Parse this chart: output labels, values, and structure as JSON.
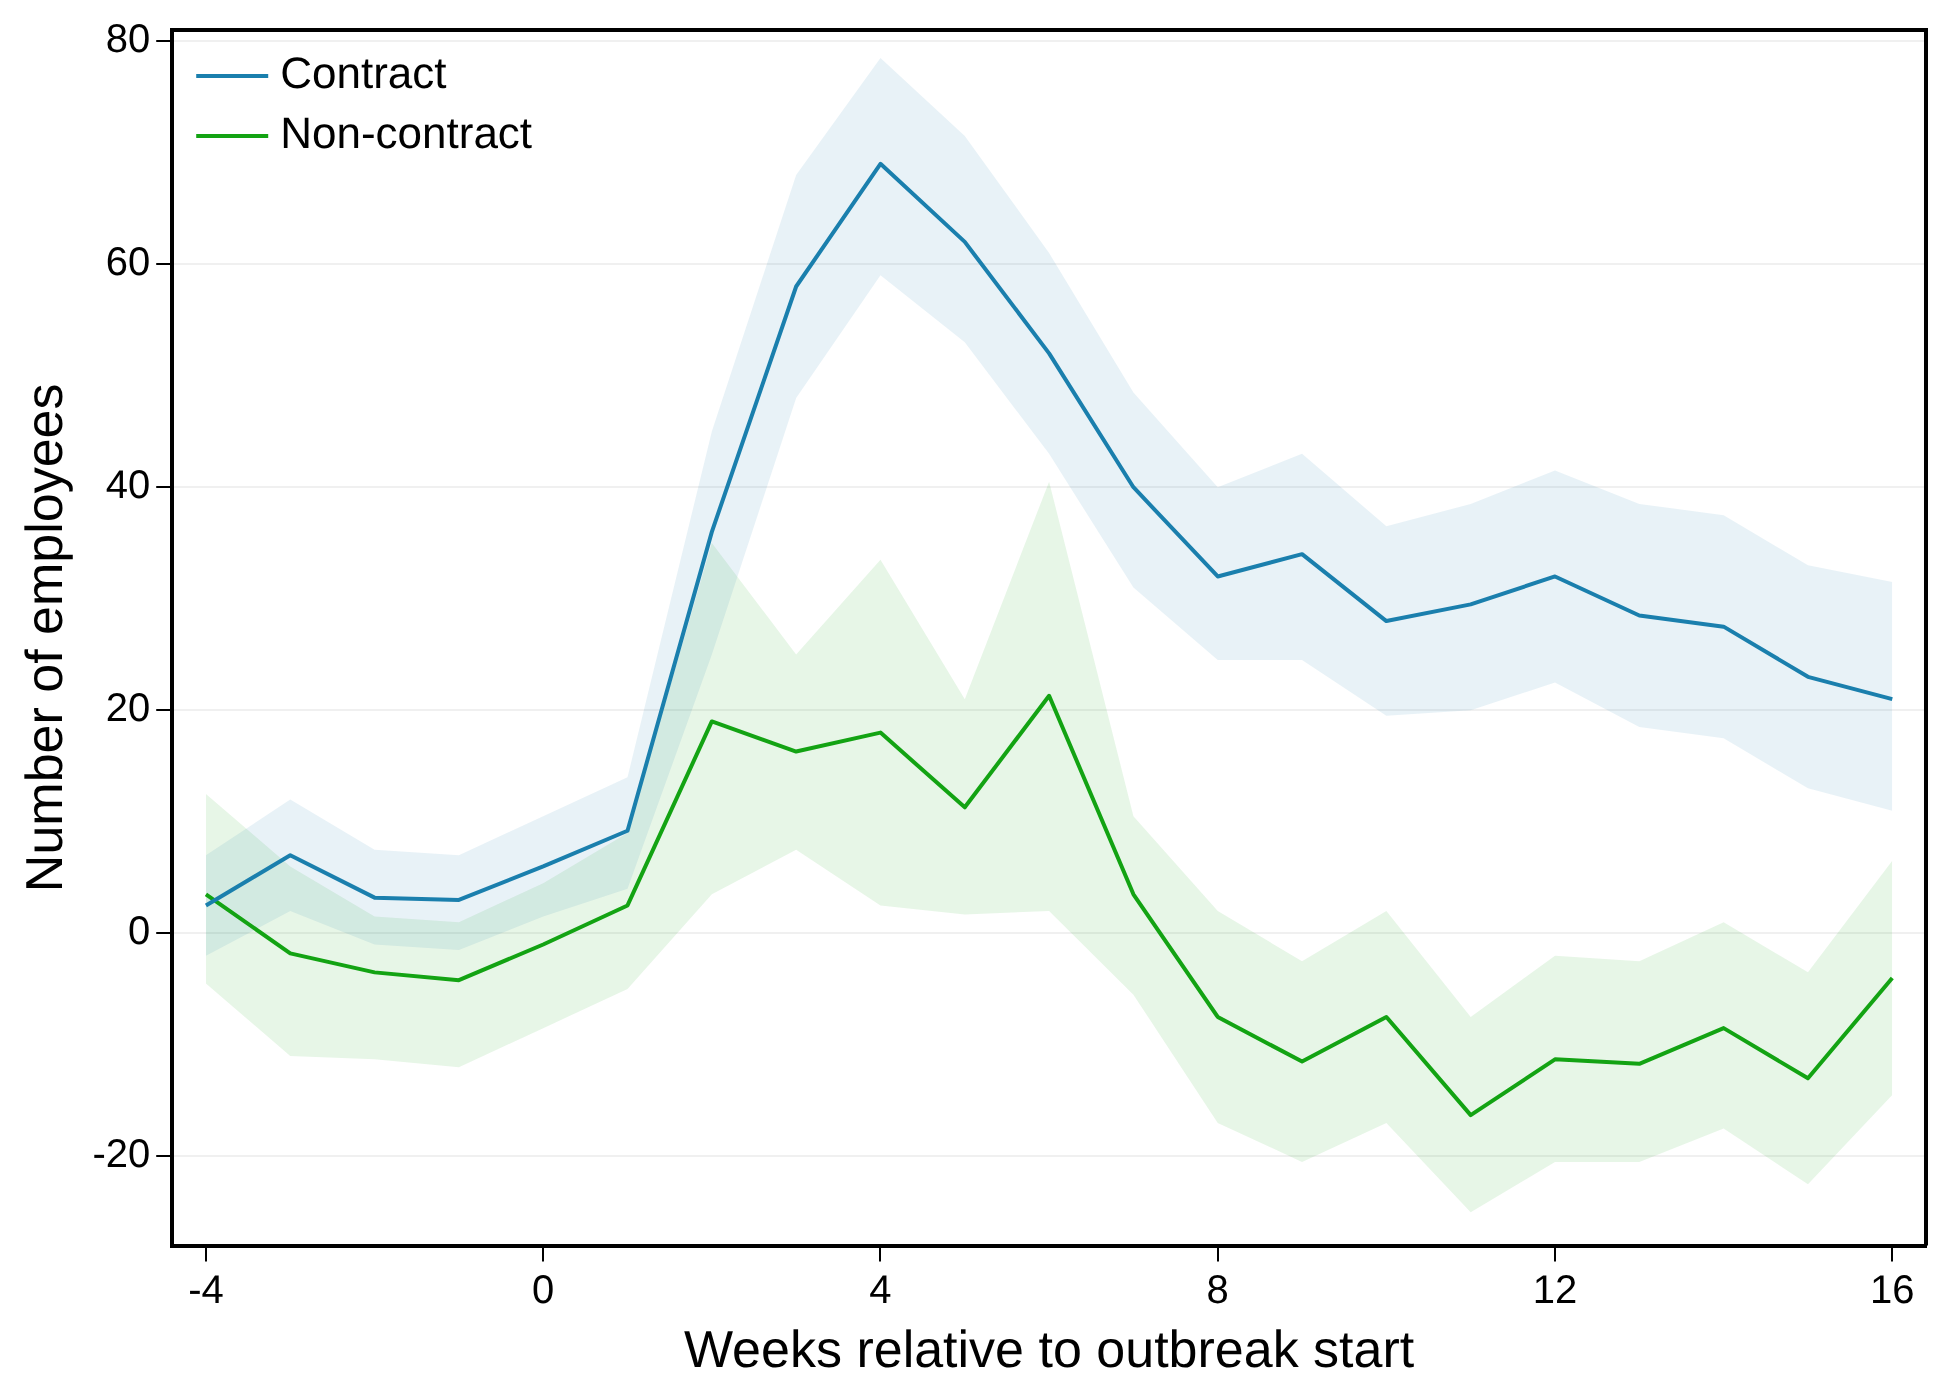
{
  "chart_data": {
    "type": "line",
    "xlabel": "Weeks relative to outbreak start",
    "ylabel": "Number of employees",
    "x": [
      -4,
      -3,
      -2,
      -1,
      0,
      1,
      2,
      3,
      4,
      5,
      6,
      7,
      8,
      9,
      10,
      11,
      12,
      13,
      14,
      15,
      16
    ],
    "xlim": [
      -4.4,
      16.4
    ],
    "xticks": [
      -4,
      0,
      4,
      8,
      12,
      16
    ],
    "ylim": [
      -28,
      81
    ],
    "yticks": [
      -20,
      0,
      20,
      40,
      60,
      80
    ],
    "grid": "y",
    "legend": "top left",
    "marker": "none",
    "line_style": "solid",
    "series": [
      {
        "name": "Contract",
        "color": "#1a7fad",
        "values": [
          2.5,
          7,
          3.2,
          3,
          6,
          9.2,
          36,
          58,
          69,
          62,
          52,
          40,
          32,
          34,
          28,
          29.5,
          32,
          28.5,
          27.5,
          23,
          21
        ],
        "lower": [
          -2,
          2,
          -1,
          -1.5,
          1.5,
          4,
          25,
          48,
          59,
          53,
          43,
          31,
          24.5,
          24.5,
          19.5,
          20,
          22.5,
          18.5,
          17.5,
          13,
          11
        ],
        "upper": [
          7,
          12,
          7.5,
          7,
          10.5,
          14,
          45,
          68,
          78.5,
          71.5,
          61,
          48.5,
          40,
          43,
          36.5,
          38.5,
          41.5,
          38.5,
          37.5,
          33,
          31.5
        ]
      },
      {
        "name": "Non-contract",
        "color": "#13a313",
        "values": [
          3.5,
          -1.8,
          -3.5,
          -4.2,
          -1,
          2.5,
          19,
          16.3,
          18,
          11.3,
          21.3,
          3.5,
          -7.5,
          -11.5,
          -7.5,
          -16.3,
          -11.3,
          -11.7,
          -8.5,
          -13,
          -4
        ],
        "lower": [
          -4.5,
          -11,
          -11.3,
          -12,
          -8.5,
          -5,
          3.5,
          7.5,
          2.5,
          1.7,
          2,
          -5.5,
          -17,
          -20.5,
          -17,
          -25,
          -20.5,
          -20.5,
          -17.5,
          -22.5,
          -14.5
        ],
        "upper": [
          12.5,
          6,
          1.5,
          1,
          4.5,
          9,
          35,
          25,
          33.5,
          21,
          40.5,
          10.5,
          2,
          -2.5,
          2,
          -7.5,
          -2,
          -2.5,
          1,
          -3.5,
          6.5
        ]
      }
    ]
  }
}
